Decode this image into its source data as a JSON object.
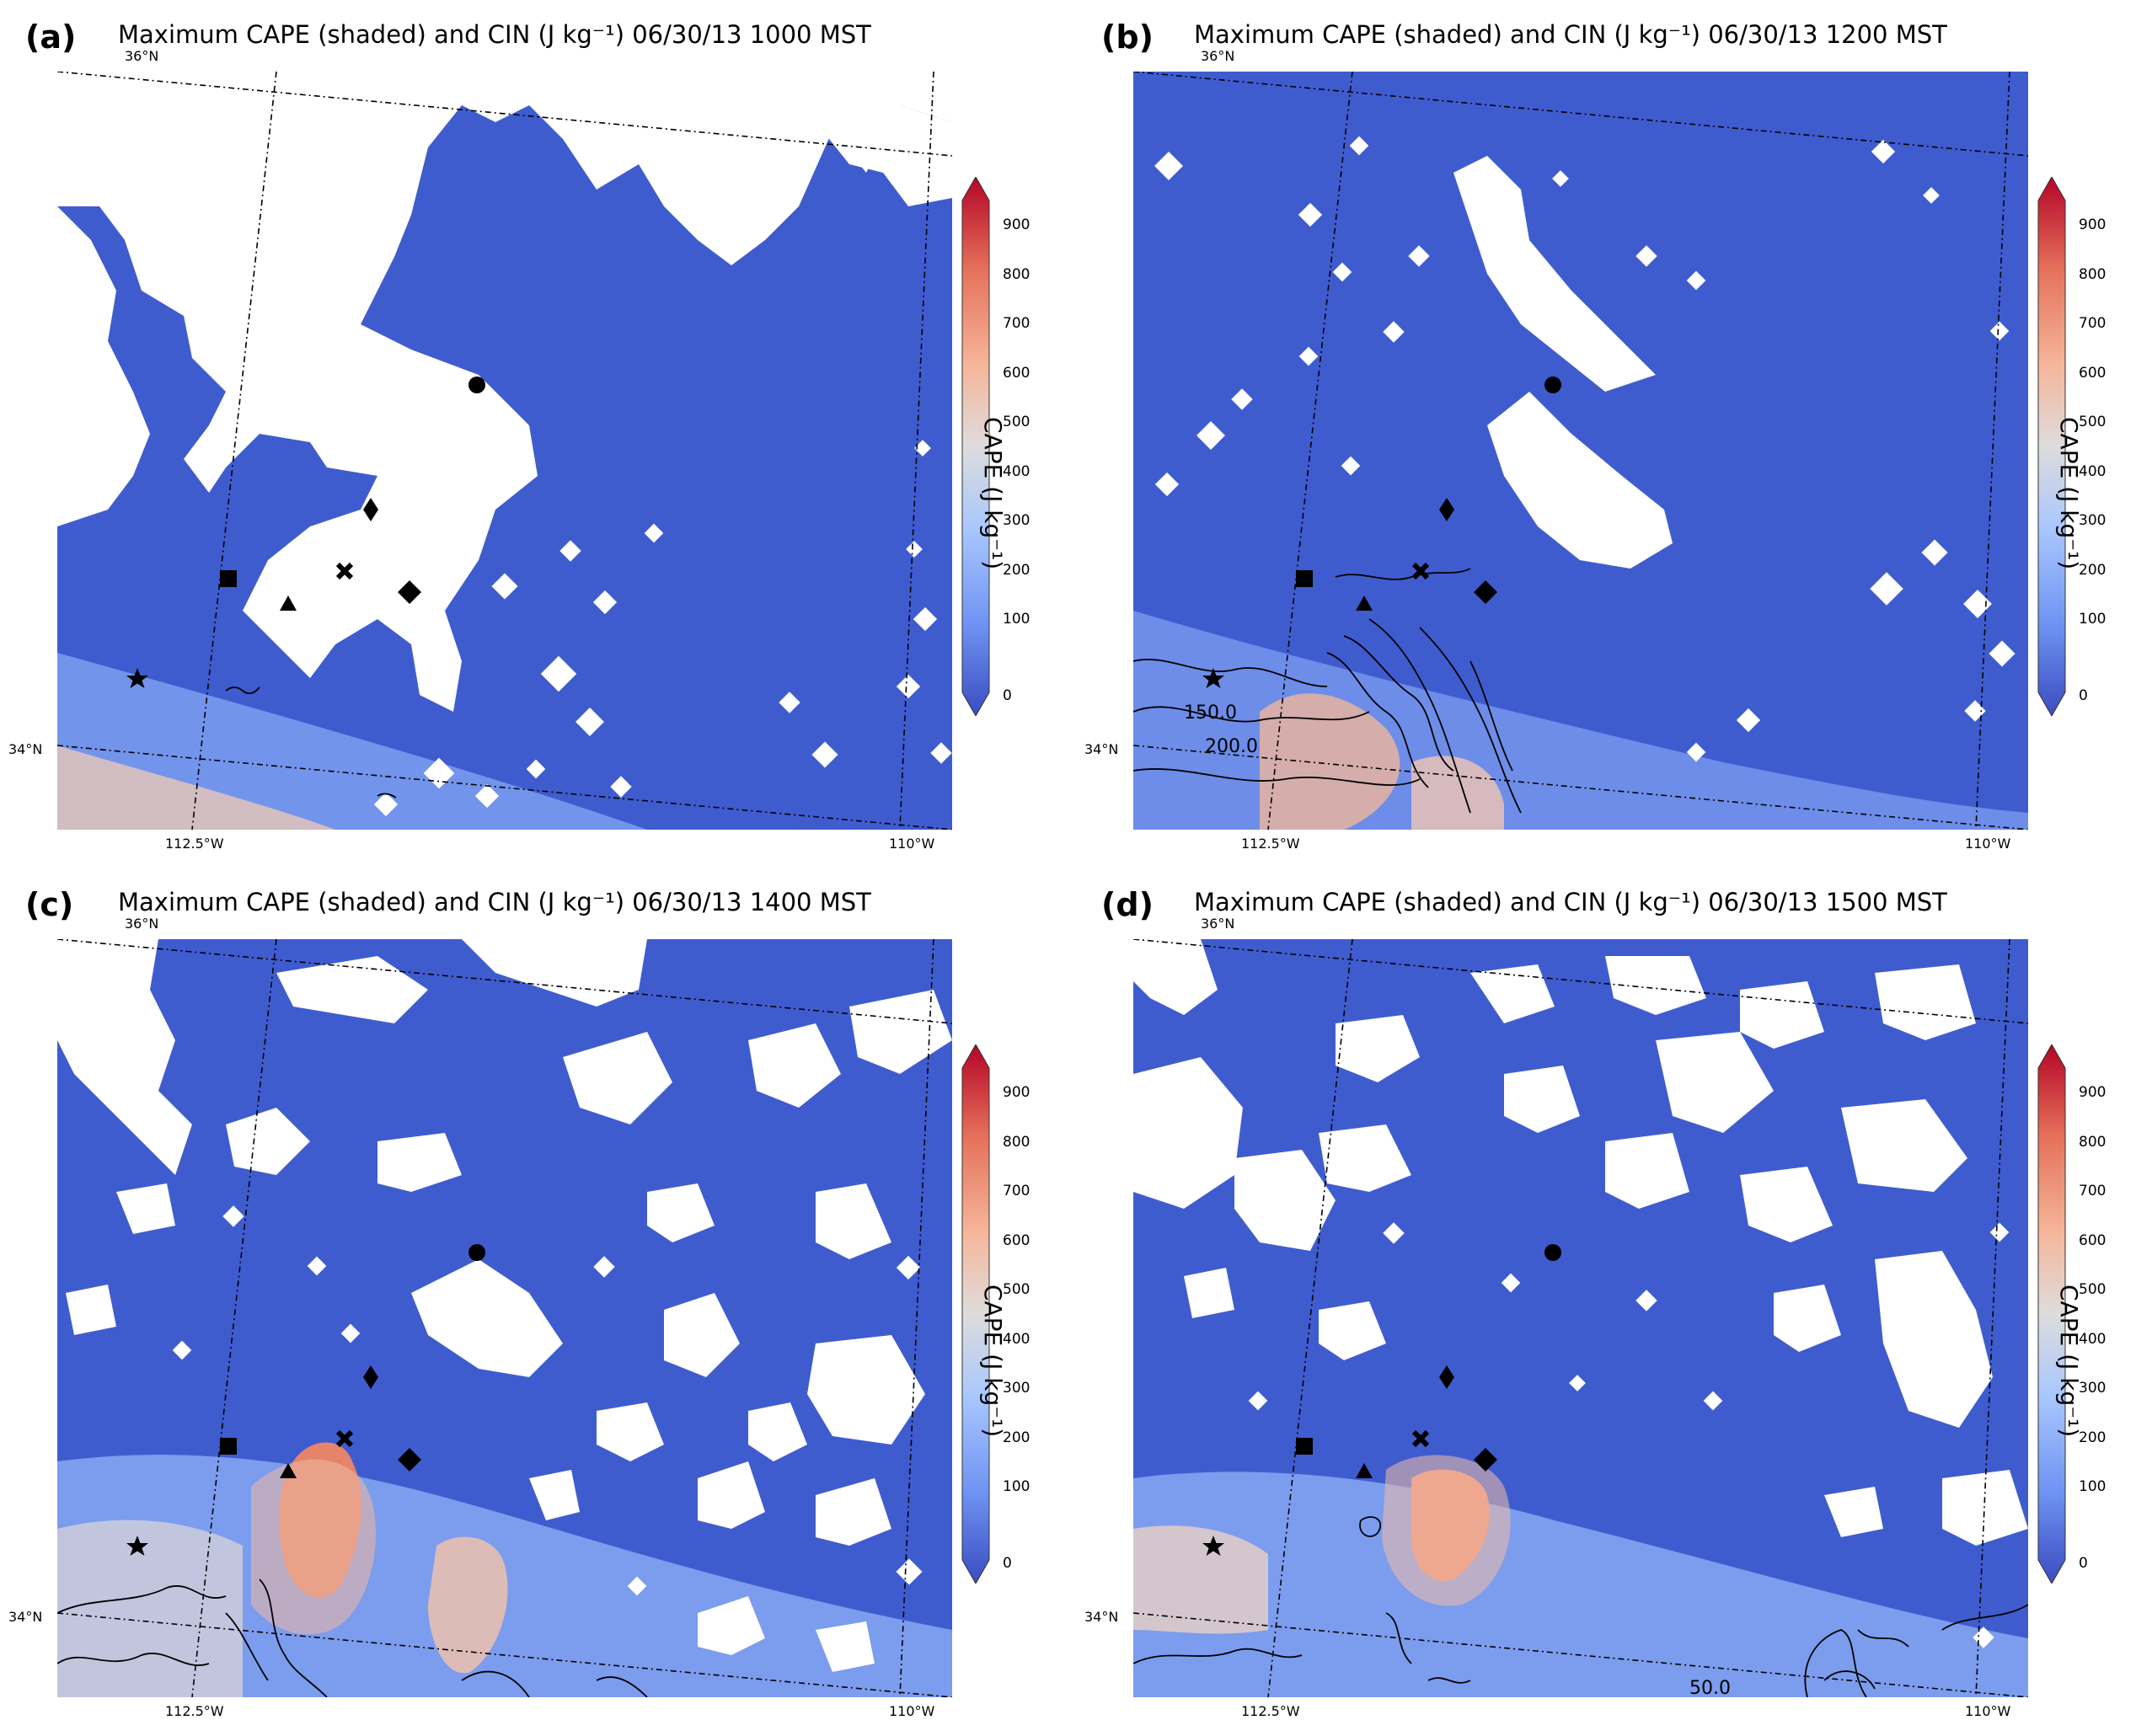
{
  "colorbar": {
    "label": "CAPE (J kg⁻¹)",
    "ticks": [
      "900",
      "800",
      "700",
      "600",
      "500",
      "400",
      "300",
      "200",
      "100",
      "0"
    ],
    "range": [
      0,
      1000
    ],
    "colormap": "coolwarm",
    "colors": [
      "#3a4cc0",
      "#6f93f3",
      "#aac7fd",
      "#dddcdc",
      "#f6b69b",
      "#e5705a",
      "#b40426"
    ]
  },
  "axes": {
    "lat_labels": [
      "36°N",
      "34°N"
    ],
    "lon_labels": [
      "112.5°W",
      "110°W"
    ]
  },
  "colors": {
    "map_base": "#3f5ccf",
    "masked": "#ffffff",
    "contour": "#000000"
  },
  "markers": [
    "circle",
    "thin-diamond",
    "square",
    "triangle",
    "x",
    "diamond",
    "star"
  ],
  "panels": [
    {
      "id": "a",
      "letter": "(a)",
      "title": "Maximum CAPE (shaded) and CIN (J kg⁻¹) 06/30/13 1000 MST",
      "cin_labels": []
    },
    {
      "id": "b",
      "letter": "(b)",
      "title": "Maximum CAPE (shaded) and CIN (J kg⁻¹) 06/30/13 1200 MST",
      "cin_labels": [
        "150.0",
        "200.0"
      ]
    },
    {
      "id": "c",
      "letter": "(c)",
      "title": "Maximum CAPE (shaded) and CIN (J kg⁻¹) 06/30/13 1400 MST",
      "cin_labels": []
    },
    {
      "id": "d",
      "letter": "(d)",
      "title": "Maximum CAPE (shaded) and CIN (J kg⁻¹) 06/30/13 1500 MST",
      "cin_labels": [
        "50.0"
      ]
    }
  ]
}
